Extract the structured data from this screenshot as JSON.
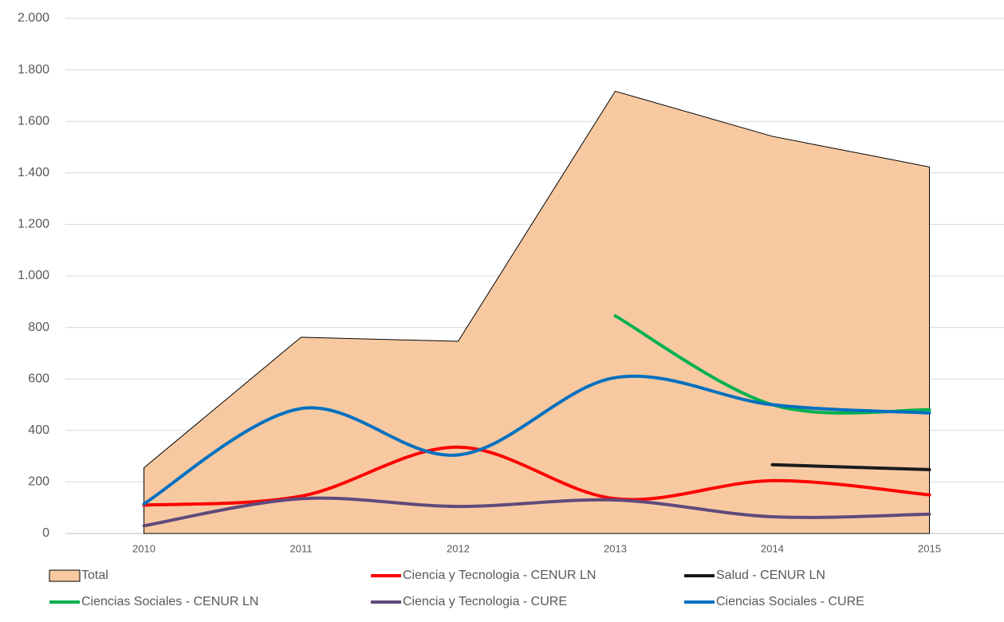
{
  "chart_data": {
    "type": "line",
    "smooth": true,
    "grid": true,
    "categories": [
      "2010",
      "2011",
      "2012",
      "2013",
      "2014",
      "2015"
    ],
    "ylim": [
      0,
      2000
    ],
    "yticks": [
      0,
      200,
      400,
      600,
      800,
      {
        "value": 1000,
        "label": "1.000"
      },
      {
        "value": 1200,
        "label": "1.200"
      },
      {
        "value": 1400,
        "label": "1.400"
      },
      {
        "value": 1600,
        "label": "1.600"
      },
      {
        "value": 1800,
        "label": "1.800"
      },
      {
        "value": 2000,
        "label": "2.000"
      }
    ],
    "series": [
      {
        "name": "Total",
        "style": "area",
        "color": "#f8c9a1",
        "values": [
          255,
          762,
          746,
          1717,
          1542,
          1423
        ]
      },
      {
        "name": "Ciencia y Tecnologia - CENUR LN",
        "color": "#ff0000",
        "values": [
          110,
          145,
          335,
          135,
          205,
          150
        ]
      },
      {
        "name": "Salud - CENUR LN",
        "color": "#1a1a1a",
        "values": [
          null,
          null,
          null,
          null,
          267,
          248
        ]
      },
      {
        "name": "Ciencias Sociales - CENUR LN",
        "color": "#00b050",
        "values": [
          null,
          null,
          null,
          845,
          500,
          480
        ]
      },
      {
        "name": "Ciencia y Tecnologia - CURE",
        "color": "#604a7b",
        "values": [
          30,
          135,
          105,
          130,
          65,
          75
        ]
      },
      {
        "name": "Ciencias Sociales - CURE",
        "color": "#0070c0",
        "values": [
          115,
          485,
          305,
          605,
          500,
          468
        ]
      }
    ]
  }
}
